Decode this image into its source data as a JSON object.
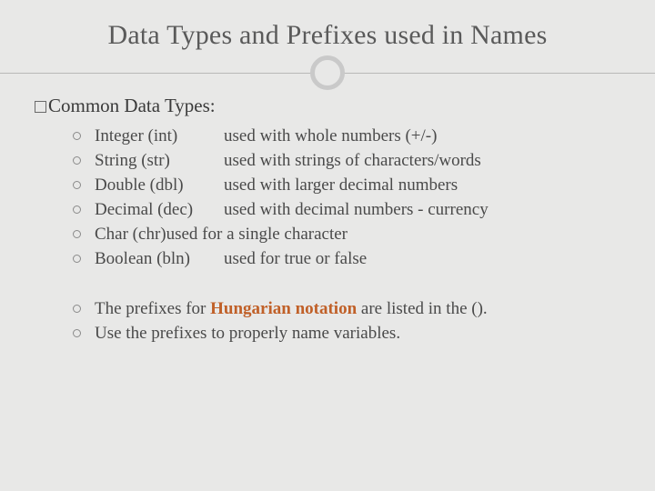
{
  "title": "Data Types and Prefixes used in Names",
  "heading": "Common Data Types:",
  "types": [
    {
      "name": "Integer (int)",
      "desc": "used with whole numbers (+/-)",
      "short": false
    },
    {
      "name": "String (str)",
      "desc": "used with strings of characters/words",
      "short": false
    },
    {
      "name": "Double (dbl)",
      "desc": "used with larger decimal numbers",
      "short": false
    },
    {
      "name": "Decimal (dec)",
      "desc": "used with decimal numbers - currency",
      "short": false
    },
    {
      "name": "Char (chr)",
      "desc": "used for a single character",
      "short": true
    },
    {
      "name": "Boolean (bln)",
      "desc": "used for true or false",
      "short": false
    }
  ],
  "notes": {
    "line1_pre": "The prefixes for ",
    "line1_hl": "Hungarian notation",
    "line1_post": " are listed in the ().",
    "line2": "Use the prefixes to properly name variables."
  },
  "colors": {
    "background": "#e8e8e7",
    "title": "#5a5a5a",
    "text": "#4a4a4a",
    "highlight": "#c06028",
    "divider": "#b8b8b8",
    "circle_border": "#c9c9c9"
  }
}
